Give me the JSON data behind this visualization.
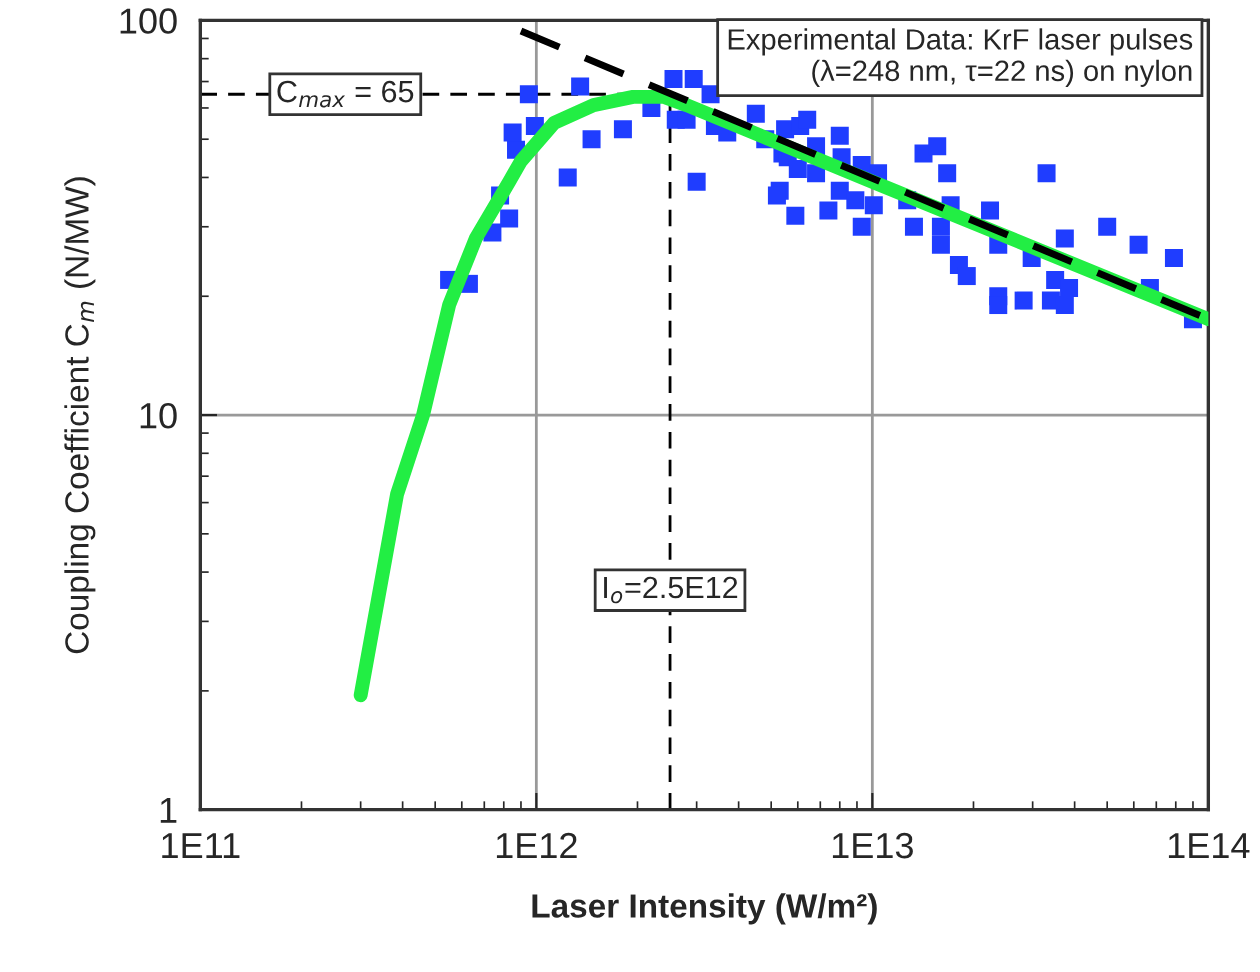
{
  "chart_data": {
    "type": "scatter",
    "xlabel": "Laser Intensity (W/m²)",
    "ylabel": "Coupling Coefficient C$_{m}$ (N/MW)",
    "log": "xy",
    "grid": true,
    "legend": false,
    "xlim": [
      100000000000.0,
      100000000000000.0
    ],
    "ylim": [
      1,
      100
    ],
    "xticks": [
      {
        "value": 100000000000.0,
        "label": "1E11"
      },
      {
        "value": 1000000000000.0,
        "label": "1E12"
      },
      {
        "value": 10000000000000.0,
        "label": "1E13"
      },
      {
        "value": 100000000000000.0,
        "label": "1E14"
      }
    ],
    "yticks": [
      1,
      10,
      100
    ],
    "series": [
      {
        "color": "#1f3dff",
        "marker": "square",
        "x": [
          550000000000.0,
          630000000000.0,
          740000000000.0,
          830000000000.0,
          780000000000.0,
          870000000000.0,
          850000000000.0,
          990000000000.0,
          950000000000.0,
          1350000000000.0,
          1240000000000.0,
          1460000000000.0,
          1810000000000.0,
          2200000000000.0,
          2560000000000.0,
          2940000000000.0,
          2600000000000.0,
          2800000000000.0,
          3300000000000.0,
          3400000000000.0,
          3700000000000.0,
          3000000000000.0,
          4500000000000.0,
          5300000000000.0,
          5400000000000.0,
          5500000000000.0,
          6100000000000.0,
          6400000000000.0,
          4800000000000.0,
          5600000000000.0,
          6800000000000.0,
          8000000000000.0,
          6000000000000.0,
          6800000000000.0,
          8100000000000.0,
          5200000000000.0,
          5900000000000.0,
          7400000000000.0,
          8000000000000.0,
          8900000000000.0,
          9300000000000.0,
          10400000000000.0,
          9300000000000.0,
          10100000000000.0,
          12700000000000.0,
          13300000000000.0,
          14200000000000.0,
          15600000000000.0,
          16700000000000.0,
          16000000000000.0,
          17100000000000.0,
          16000000000000.0,
          18100000000000.0,
          19100000000000.0,
          22400000000000.0,
          23700000000000.0,
          23700000000000.0,
          23700000000000.0,
          28200000000000.0,
          29800000000000.0,
          33000000000000.0,
          34000000000000.0,
          35000000000000.0,
          37400000000000.0,
          38500000000000.0,
          37400000000000.0,
          50000000000000.0,
          62000000000000.0,
          67000000000000.0,
          79000000000000.0,
          90000000000000.0
        ],
        "values": [
          22,
          21.5,
          29,
          31.5,
          36,
          47,
          52,
          54,
          65,
          68,
          40,
          50,
          53,
          60,
          71,
          71,
          56,
          56,
          65,
          54,
          52,
          39,
          58,
          37,
          46,
          53,
          54,
          56,
          50,
          45,
          48,
          51,
          42,
          41,
          45,
          36,
          32,
          33,
          37,
          35,
          43,
          41,
          30,
          34,
          35,
          30,
          46,
          48,
          41,
          30,
          34,
          27,
          24,
          22.5,
          33,
          27,
          20,
          19,
          19.5,
          25,
          41,
          19.5,
          22,
          28,
          21,
          19,
          30,
          27,
          21,
          25,
          17.5
        ]
      },
      {
        "type": "line",
        "color": "#22ee44",
        "line_style": "solid",
        "marker": "none",
        "x": [
          300000000000.0,
          385000000000.0,
          460000000000.0,
          550000000000.0,
          660000000000.0,
          830000000000.0,
          900000000000.0,
          1130000000000.0,
          1480000000000.0,
          1940000000000.0,
          2400000000000.0,
          2800000000000.0,
          10000000000000.0,
          100000000000000.0
        ],
        "values": [
          1.95,
          6.3,
          10,
          19,
          28,
          39,
          44,
          55,
          61,
          64,
          64,
          61,
          39,
          17.5
        ]
      },
      {
        "type": "line",
        "color": "#000000",
        "line_style": "dashed",
        "marker": "none",
        "x": [
          900000000000.0,
          100000000000000.0
        ],
        "values": [
          94,
          17.5
        ]
      },
      {
        "type": "line",
        "color": "#000000",
        "line_style": "dashed",
        "marker": "none",
        "x": [
          100000000000.0,
          2500000000000.0
        ],
        "values": [
          65,
          65
        ]
      },
      {
        "type": "line",
        "color": "#000000",
        "line_style": "dashed",
        "marker": "none",
        "x": [
          2500000000000.0,
          2500000000000.0
        ],
        "values": [
          1,
          65
        ]
      }
    ],
    "annotations": [
      {
        "text": "C$_{max}$ = 65",
        "x": 270000000000.0,
        "y": 65
      },
      {
        "text": "I$_{o}$=2.5E12",
        "x": 2500000000000.0,
        "y": 3.6
      },
      "Experimental Data: KrF laser pulses\n(λ=248 nm, τ=22 ns) on nylon"
    ]
  }
}
